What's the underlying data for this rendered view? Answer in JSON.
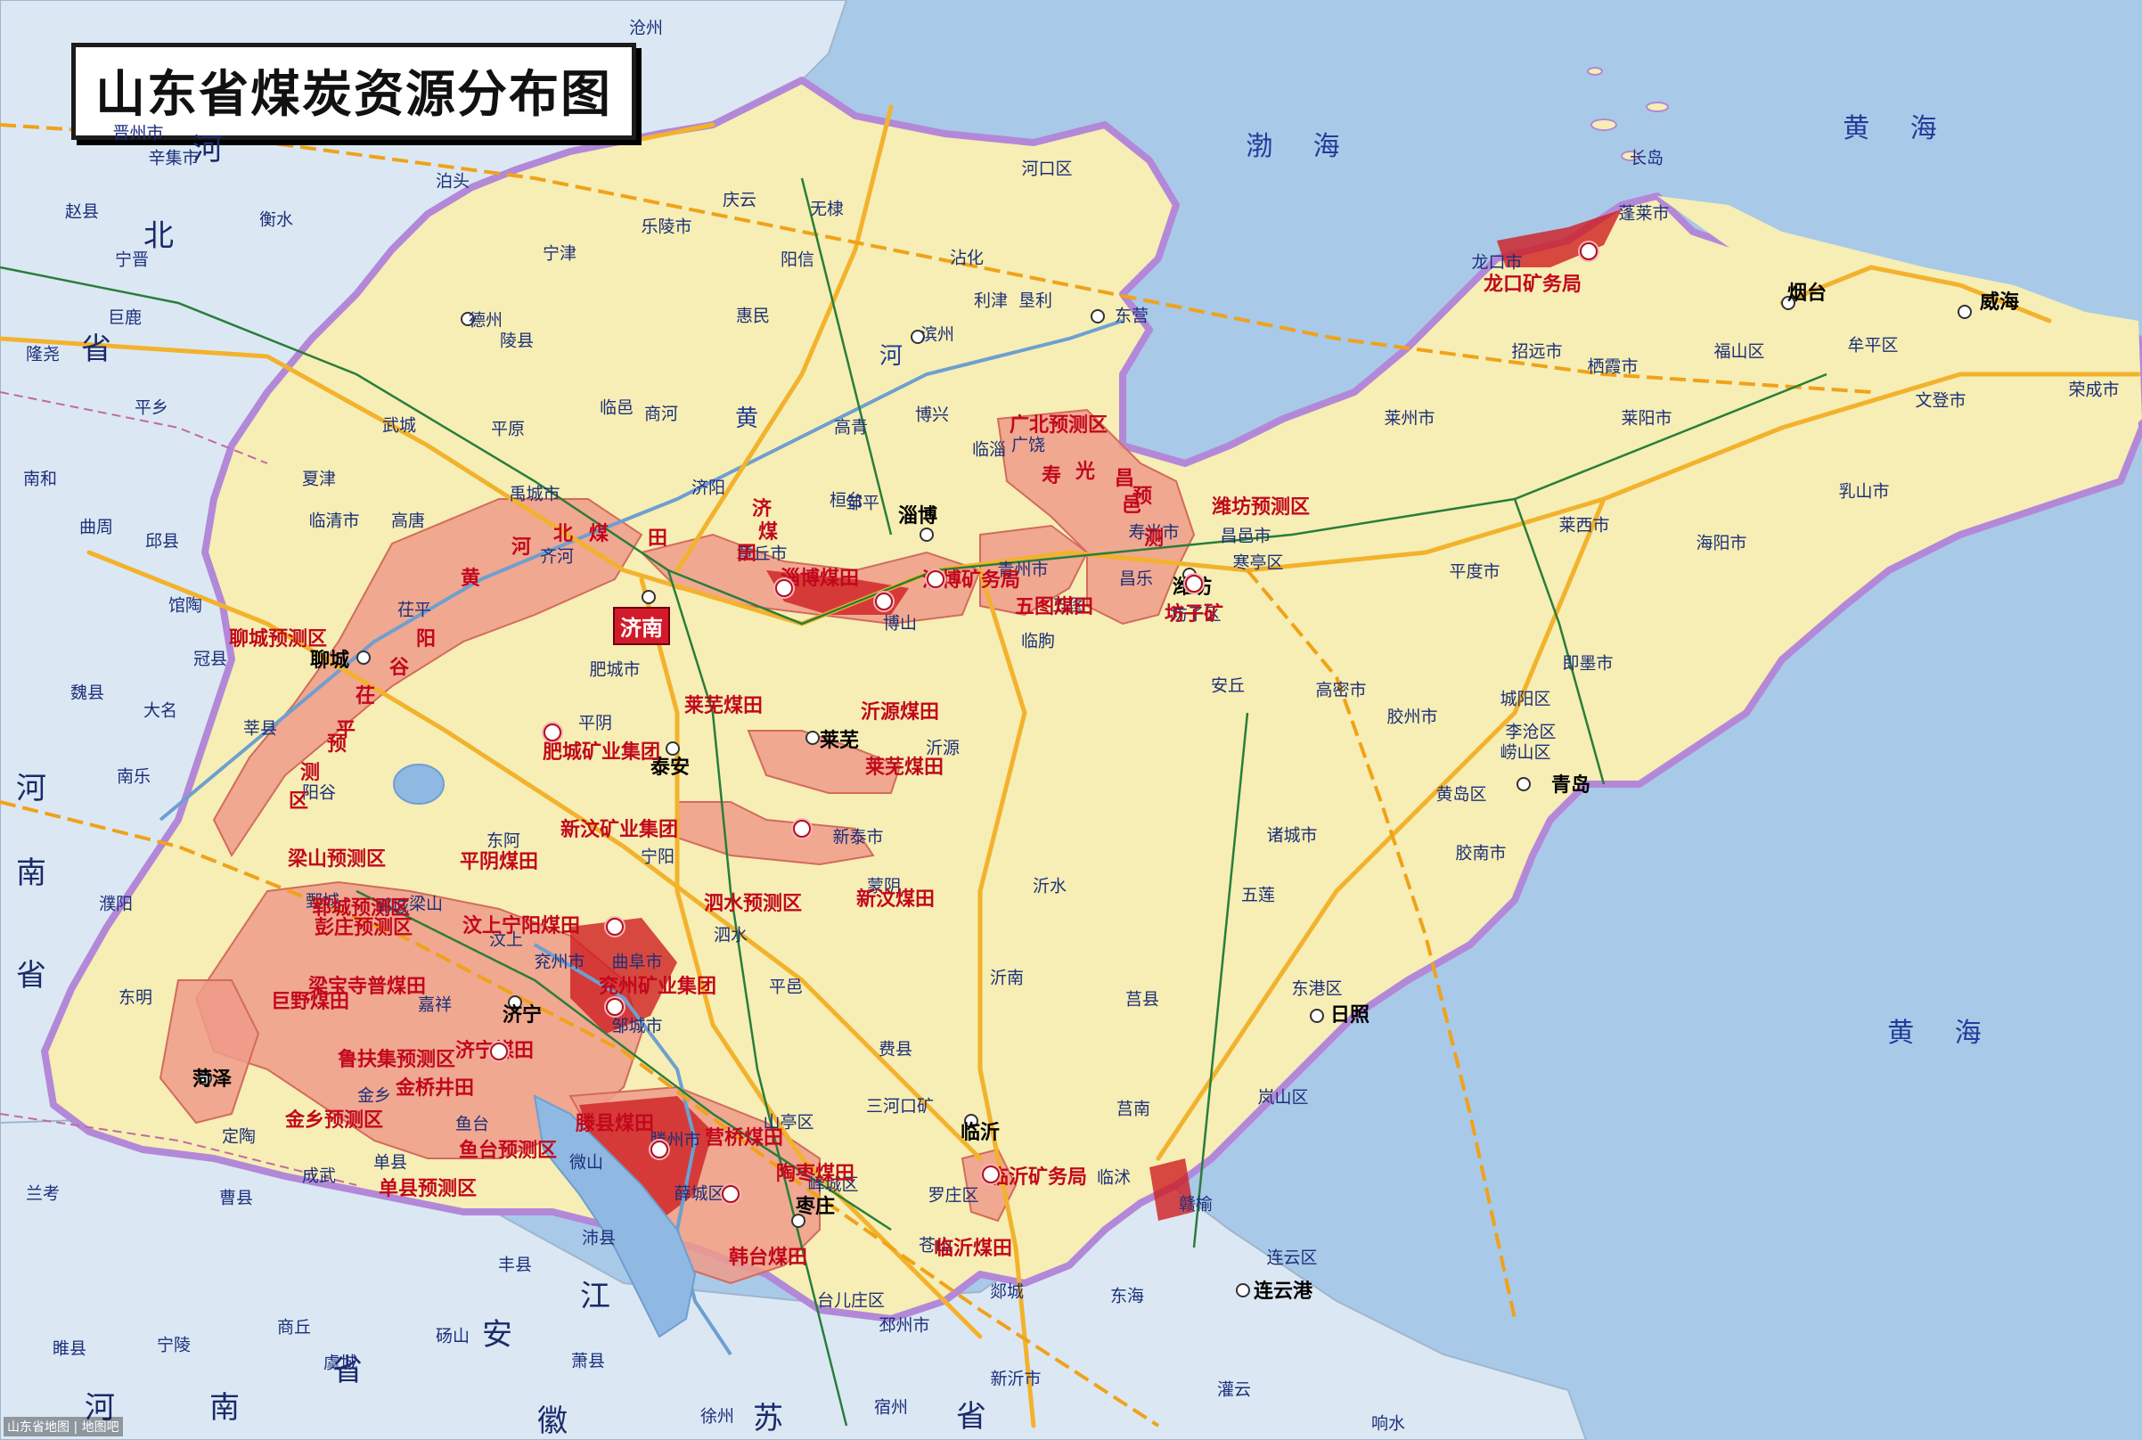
{
  "title": "山东省煤炭资源分布图",
  "colors": {
    "sea": "#a9c9e8",
    "land_outside": "#dbe8f3",
    "shandong": "#f6eeb4",
    "coal_field": "#ee9b8a",
    "coal_dense": "#cf1e22",
    "province_border": "#b388d8",
    "road": "#f3b22d",
    "rail": "#2a7d3b"
  },
  "seas": [
    {
      "name": "渤 海"
    },
    {
      "name": "黄 海"
    },
    {
      "name": "黄 海"
    },
    {
      "name": "黄 海"
    }
  ],
  "provinces": [
    {
      "name": "河"
    },
    {
      "name": "北"
    },
    {
      "name": "省"
    },
    {
      "name": "河"
    },
    {
      "name": "南"
    },
    {
      "name": "省"
    },
    {
      "name": "江"
    },
    {
      "name": "苏"
    },
    {
      "name": "安"
    },
    {
      "name": "徽"
    },
    {
      "name": "省"
    },
    {
      "name": "河"
    },
    {
      "name": "南"
    },
    {
      "name": "省"
    }
  ],
  "rivers": [
    {
      "name": "黄"
    },
    {
      "name": "河"
    }
  ],
  "major_cities": [
    {
      "name": "济南"
    },
    {
      "name": "青岛"
    },
    {
      "name": "淄博"
    },
    {
      "name": "烟台"
    },
    {
      "name": "威海"
    },
    {
      "name": "日照"
    },
    {
      "name": "临沂"
    },
    {
      "name": "泰安"
    },
    {
      "name": "莱芜"
    },
    {
      "name": "济宁"
    },
    {
      "name": "聊城"
    },
    {
      "name": "菏泽"
    },
    {
      "name": "东营"
    },
    {
      "name": "滨州"
    },
    {
      "name": "德州"
    },
    {
      "name": "潍坊"
    },
    {
      "name": "枣庄"
    },
    {
      "name": "连云港"
    }
  ],
  "cities": [
    {
      "name": "沧州"
    },
    {
      "name": "衡水"
    },
    {
      "name": "泊头"
    },
    {
      "name": "晋州市"
    },
    {
      "name": "辛集市"
    },
    {
      "name": "赵县"
    },
    {
      "name": "宁晋"
    },
    {
      "name": "隆尧"
    },
    {
      "name": "巨鹿"
    },
    {
      "name": "平乡"
    },
    {
      "name": "南和"
    },
    {
      "name": "曲周"
    },
    {
      "name": "邱县"
    },
    {
      "name": "馆陶"
    },
    {
      "name": "冠县"
    },
    {
      "name": "魏县"
    },
    {
      "name": "大名"
    },
    {
      "name": "南乐"
    },
    {
      "name": "濮阳"
    },
    {
      "name": "东明"
    },
    {
      "name": "兰考"
    },
    {
      "name": "商丘"
    },
    {
      "name": "虞城"
    },
    {
      "name": "砀山"
    },
    {
      "name": "萧县"
    },
    {
      "name": "睢县"
    },
    {
      "name": "宁陵"
    },
    {
      "name": "宿州"
    },
    {
      "name": "徐州"
    },
    {
      "name": "新沂市"
    },
    {
      "name": "邳州市"
    },
    {
      "name": "东海"
    },
    {
      "name": "灌云"
    },
    {
      "name": "赣榆"
    },
    {
      "name": "莒南"
    },
    {
      "name": "莒县"
    },
    {
      "name": "五莲"
    },
    {
      "name": "诸城市"
    },
    {
      "name": "胶南市"
    },
    {
      "name": "黄岛区"
    },
    {
      "name": "胶州市"
    },
    {
      "name": "即墨市"
    },
    {
      "name": "莱西市"
    },
    {
      "name": "平度市"
    },
    {
      "name": "高密市"
    },
    {
      "name": "昌邑市"
    },
    {
      "name": "寿光市"
    },
    {
      "name": "广饶"
    },
    {
      "name": "博兴"
    },
    {
      "name": "邹平"
    },
    {
      "name": "章丘市"
    },
    {
      "name": "济阳"
    },
    {
      "name": "商河"
    },
    {
      "name": "临邑"
    },
    {
      "name": "禹城市"
    },
    {
      "name": "齐河"
    },
    {
      "name": "茌平"
    },
    {
      "name": "东阿"
    },
    {
      "name": "平阴"
    },
    {
      "name": "肥城市"
    },
    {
      "name": "宁阳"
    },
    {
      "name": "汶上"
    },
    {
      "name": "梁山"
    },
    {
      "name": "郓城"
    },
    {
      "name": "鄄城"
    },
    {
      "name": "嘉祥"
    },
    {
      "name": "金乡"
    },
    {
      "name": "鱼台"
    },
    {
      "name": "单县"
    },
    {
      "name": "成武"
    },
    {
      "name": "定陶"
    },
    {
      "name": "曹县"
    },
    {
      "name": "微山"
    },
    {
      "name": "滕州市"
    },
    {
      "name": "邹城市"
    },
    {
      "name": "兖州市"
    },
    {
      "name": "曲阜市"
    },
    {
      "name": "泗水"
    },
    {
      "name": "平邑"
    },
    {
      "name": "费县"
    },
    {
      "name": "蒙阴"
    },
    {
      "name": "沂南"
    },
    {
      "name": "沂水"
    },
    {
      "name": "新泰市"
    },
    {
      "name": "临朐"
    },
    {
      "name": "青州市"
    },
    {
      "name": "安丘"
    },
    {
      "name": "坊子区"
    },
    {
      "name": "招远市"
    },
    {
      "name": "栖霞市"
    },
    {
      "name": "莱阳市"
    },
    {
      "name": "海阳市"
    },
    {
      "name": "乳山市"
    },
    {
      "name": "文登市"
    },
    {
      "name": "荣成市"
    },
    {
      "name": "牟平区"
    },
    {
      "name": "福山区"
    },
    {
      "name": "龙口市"
    },
    {
      "name": "蓬莱市"
    },
    {
      "name": "莱州市"
    },
    {
      "name": "长岛"
    },
    {
      "name": "利津"
    },
    {
      "name": "垦利"
    },
    {
      "name": "河口区"
    },
    {
      "name": "庆云"
    },
    {
      "name": "乐陵市"
    },
    {
      "name": "宁津"
    },
    {
      "name": "陵县"
    },
    {
      "name": "平原"
    },
    {
      "name": "武城"
    },
    {
      "name": "夏津"
    },
    {
      "name": "高唐"
    },
    {
      "name": "临清市"
    },
    {
      "name": "阳谷"
    },
    {
      "name": "莘县"
    },
    {
      "name": "惠民"
    },
    {
      "name": "阳信"
    },
    {
      "name": "无棣"
    },
    {
      "name": "沾化"
    },
    {
      "name": "高青"
    },
    {
      "name": "桓台"
    },
    {
      "name": "博山"
    },
    {
      "name": "沂源"
    },
    {
      "name": "五图"
    },
    {
      "name": "昌乐"
    },
    {
      "name": "临淄"
    },
    {
      "name": "寒亭区"
    },
    {
      "name": "城阳区"
    },
    {
      "name": "崂山区"
    },
    {
      "name": "李沧区"
    },
    {
      "name": "东港区"
    },
    {
      "name": "岚山区"
    },
    {
      "name": "罗庄区"
    },
    {
      "name": "山亭区"
    },
    {
      "name": "峄城区"
    },
    {
      "name": "台儿庄区"
    },
    {
      "name": "薛城区"
    },
    {
      "name": "丰县"
    },
    {
      "name": "沛县"
    },
    {
      "name": "郯城"
    },
    {
      "name": "苍山"
    },
    {
      "name": "临沭"
    },
    {
      "name": "连云区"
    },
    {
      "name": "响水"
    }
  ],
  "coal_fields": [
    {
      "name": "北"
    },
    {
      "name": "煤"
    },
    {
      "name": "田"
    },
    {
      "name": "河"
    },
    {
      "name": "黄"
    },
    {
      "name": "阳"
    },
    {
      "name": "谷"
    },
    {
      "name": "茌"
    },
    {
      "name": "平"
    },
    {
      "name": "预"
    },
    {
      "name": "测"
    },
    {
      "name": "区"
    },
    {
      "name": "聊城预测区"
    },
    {
      "name": "济"
    },
    {
      "name": "田"
    },
    {
      "name": "煤"
    },
    {
      "name": "淄博煤田"
    },
    {
      "name": "淄博矿务局"
    },
    {
      "name": "五图煤田"
    },
    {
      "name": "坊子矿"
    },
    {
      "name": "潍坊预测区"
    },
    {
      "name": "寿"
    },
    {
      "name": "光"
    },
    {
      "name": "昌"
    },
    {
      "name": "邑"
    },
    {
      "name": "预"
    },
    {
      "name": "测"
    },
    {
      "name": "广北预测区"
    },
    {
      "name": "龙口矿务局"
    },
    {
      "name": "莱芜煤田"
    },
    {
      "name": "沂源煤田"
    },
    {
      "name": "莱芜煤田"
    },
    {
      "name": "肥城矿业集团"
    },
    {
      "name": "新汶矿业集团"
    },
    {
      "name": "新汶煤田"
    },
    {
      "name": "泗水预测区"
    },
    {
      "name": "梁山预测区"
    },
    {
      "name": "郓城预测区"
    },
    {
      "name": "彭庄预测区"
    },
    {
      "name": "汶上宁阳煤田"
    },
    {
      "name": "梁宝寺普煤田"
    },
    {
      "name": "兖州矿业集团"
    },
    {
      "name": "巨野煤田"
    },
    {
      "name": "济宁煤田"
    },
    {
      "name": "菏泽"
    },
    {
      "name": "鲁扶集预测区"
    },
    {
      "name": "金桥井田"
    },
    {
      "name": "金乡预测区"
    },
    {
      "name": "鱼台预测区"
    },
    {
      "name": "单县预测区"
    },
    {
      "name": "滕县煤田"
    },
    {
      "name": "营桥煤田"
    },
    {
      "name": "陶枣煤田"
    },
    {
      "name": "韩台煤田"
    },
    {
      "name": "临沂煤田"
    },
    {
      "name": "临沂矿务局"
    },
    {
      "name": "三河口矿"
    },
    {
      "name": "平阴煤田"
    }
  ],
  "footer_note": "山东省地图 | 地图吧"
}
